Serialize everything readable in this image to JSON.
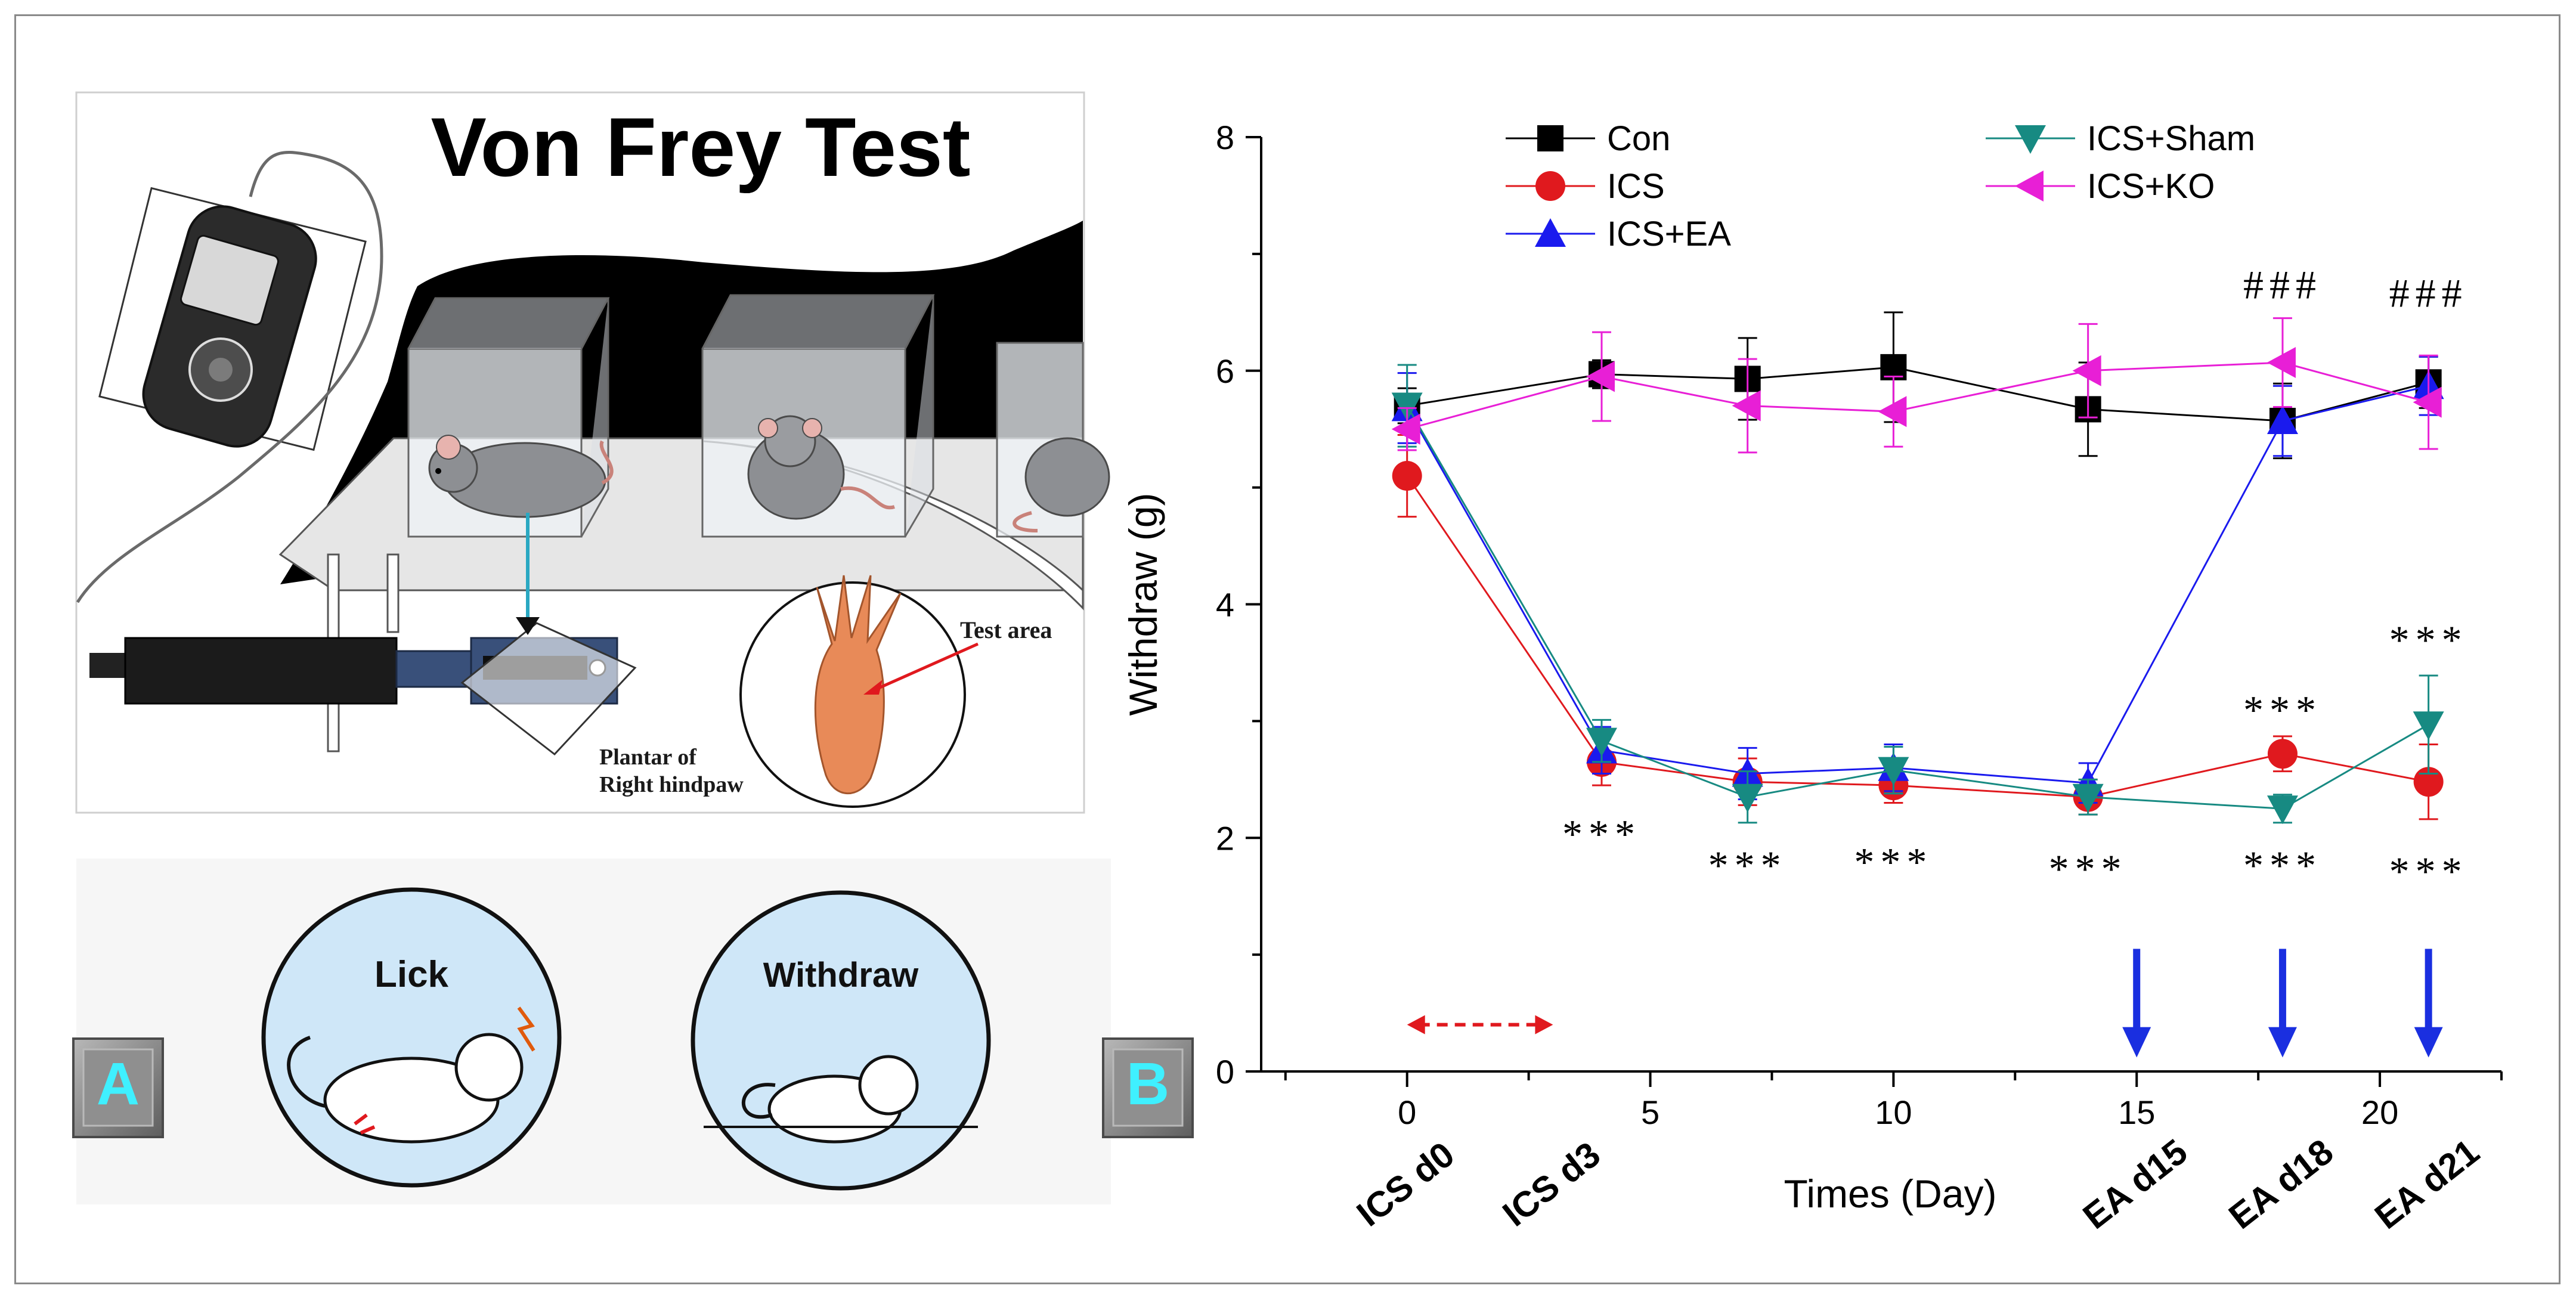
{
  "panel_a": {
    "title": "Von Frey Test",
    "test_area_label": "Test area",
    "plantar_label_1": "Plantar of",
    "plantar_label_2": "Right hindpaw",
    "lick_label": "Lick",
    "withdraw_label": "Withdraw",
    "badge": "A"
  },
  "panel_b": {
    "badge": "B"
  },
  "colors": {
    "con": "#000000",
    "ics": "#e0191e",
    "ics_ea": "#1a1aee",
    "ics_sham": "#178a82",
    "ics_ko": "#e81fd6",
    "arrow_blue": "#1a2fe0",
    "dashed_red": "#e0191e",
    "badge_text": "#3ff0ff"
  },
  "chart_data": {
    "type": "line",
    "title": "",
    "xlabel": "Times (Day)",
    "ylabel": "Withdraw (g)",
    "xlim": [
      -3,
      22.5
    ],
    "ylim": [
      0,
      8
    ],
    "xticks": [
      0,
      5,
      10,
      15,
      20
    ],
    "yticks": [
      0,
      2,
      4,
      6,
      8
    ],
    "x": [
      0,
      4,
      7,
      10,
      14,
      18,
      21
    ],
    "legend_position": "top",
    "series": [
      {
        "name": "Con",
        "marker": "square",
        "values": [
          5.7,
          5.97,
          5.93,
          6.03,
          5.67,
          5.57,
          5.9
        ],
        "errors": [
          0.15,
          0.12,
          0.35,
          0.47,
          0.4,
          0.32,
          0.22
        ]
      },
      {
        "name": "ICS",
        "marker": "circle",
        "values": [
          5.1,
          2.65,
          2.48,
          2.45,
          2.35,
          2.72,
          2.48
        ],
        "errors": [
          0.35,
          0.2,
          0.2,
          0.15,
          0.15,
          0.15,
          0.32
        ]
      },
      {
        "name": "ICS+EA",
        "marker": "triangle-up",
        "values": [
          5.68,
          2.75,
          2.55,
          2.6,
          2.47,
          5.57,
          5.87
        ],
        "errors": [
          0.3,
          0.2,
          0.22,
          0.2,
          0.17,
          0.3,
          0.25
        ]
      },
      {
        "name": "ICS+Sham",
        "marker": "triangle-down",
        "values": [
          5.7,
          2.83,
          2.35,
          2.58,
          2.35,
          2.25,
          2.97
        ],
        "errors": [
          0.35,
          0.18,
          0.22,
          0.2,
          0.15,
          0.12,
          0.42
        ]
      },
      {
        "name": "ICS+KO",
        "marker": "triangle-left",
        "values": [
          5.5,
          5.95,
          5.7,
          5.65,
          6.0,
          6.07,
          5.73
        ],
        "errors": [
          0.18,
          0.38,
          0.4,
          0.3,
          0.4,
          0.38,
          0.4
        ]
      }
    ],
    "stage_labels": [
      {
        "label": "ICS d0",
        "x": 0
      },
      {
        "label": "ICS d3",
        "x": 3
      },
      {
        "label": "EA d15",
        "x": 15
      },
      {
        "label": "EA d18",
        "x": 18
      },
      {
        "label": "EA d21",
        "x": 21
      }
    ],
    "annotations": [
      {
        "text": "***",
        "x": 4,
        "y": 2.02
      },
      {
        "text": "***",
        "x": 7,
        "y": 1.75
      },
      {
        "text": "***",
        "x": 10,
        "y": 1.78
      },
      {
        "text": "***",
        "x": 14,
        "y": 1.72
      },
      {
        "text": "***",
        "x": 18,
        "y": 1.75
      },
      {
        "text": "***",
        "x": 21,
        "y": 1.7
      },
      {
        "text": "***",
        "x": 18,
        "y": 3.08
      },
      {
        "text": "***",
        "x": 21,
        "y": 3.68
      },
      {
        "text": "###",
        "x": 18,
        "y": 6.72
      },
      {
        "text": "###",
        "x": 21,
        "y": 6.65
      }
    ],
    "ics_period": [
      0,
      3
    ],
    "ea_arrows_x": [
      15,
      18,
      21
    ]
  }
}
